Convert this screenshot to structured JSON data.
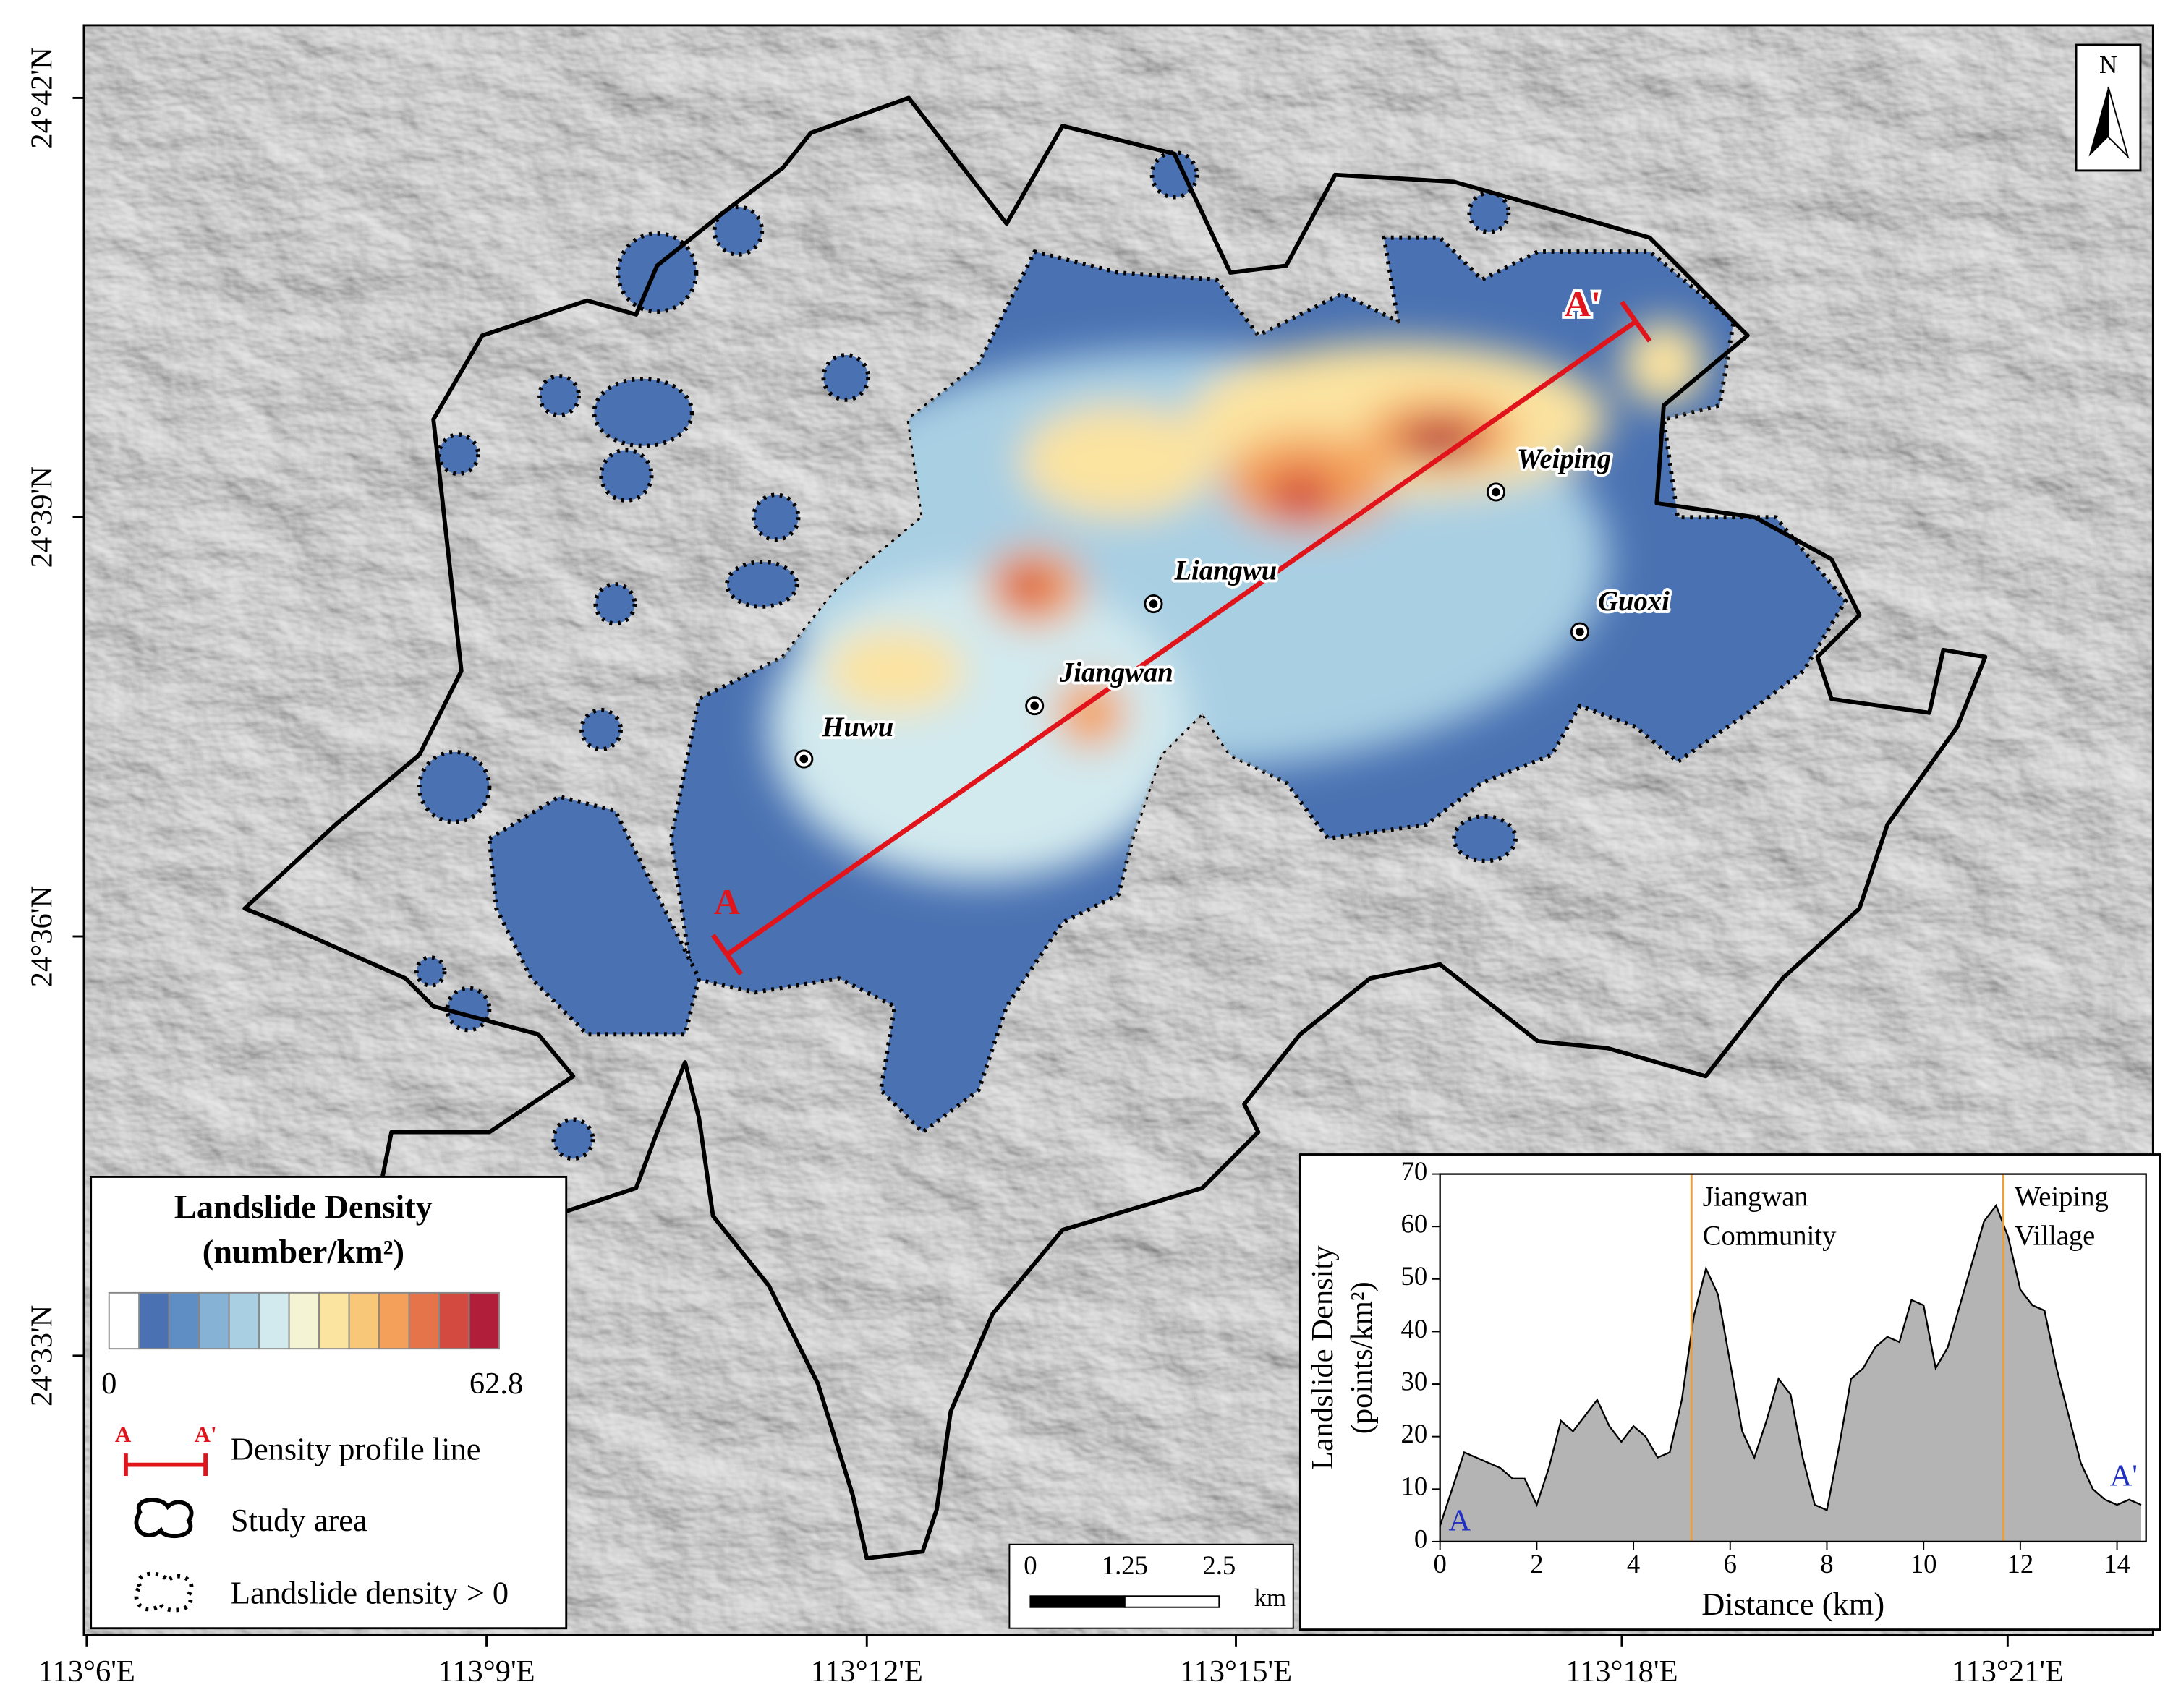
{
  "map": {
    "lat_labels": [
      "24°42'N",
      "24°39'N",
      "24°36'N",
      "24°33'N"
    ],
    "lon_labels": [
      "113°6'E",
      "113°9'E",
      "113°12'E",
      "113°15'E",
      "113°18'E",
      "113°21'E"
    ],
    "north": "N",
    "places": [
      "Huwu",
      "Jiangwan",
      "Liangwu",
      "Weiping",
      "Guoxi"
    ],
    "profile_start": "A",
    "profile_end": "A'"
  },
  "legend": {
    "title": "Landslide Density",
    "unit": "(number/km²)",
    "colors": [
      "#ffffff",
      "#4a72b2",
      "#5f8ec4",
      "#86b2d6",
      "#a9cfe3",
      "#d2e9ee",
      "#f4f4d4",
      "#fbe3a0",
      "#f8c778",
      "#f4a05a",
      "#e6744a",
      "#d24a40",
      "#b01e3a"
    ],
    "min": 0,
    "max": 62.8,
    "items": [
      "Density profile line",
      "Study area",
      "Landslide density > 0"
    ],
    "profile_symbol": [
      "A",
      "A'"
    ]
  },
  "scale_bar": {
    "ticks": [
      0,
      1.25,
      2.5
    ],
    "unit": "km"
  },
  "chart_data": {
    "type": "area",
    "xlabel": "Distance (km)",
    "ylabel": [
      "Landslide Density",
      "(points/km²)"
    ],
    "x": [
      0,
      0.25,
      0.5,
      0.75,
      1,
      1.25,
      1.5,
      1.75,
      2,
      2.25,
      2.5,
      2.75,
      3,
      3.25,
      3.5,
      3.75,
      4,
      4.25,
      4.5,
      4.75,
      5,
      5.25,
      5.5,
      5.75,
      6,
      6.25,
      6.5,
      6.75,
      7,
      7.25,
      7.5,
      7.75,
      8,
      8.25,
      8.5,
      8.75,
      9,
      9.25,
      9.5,
      9.75,
      10,
      10.25,
      10.5,
      10.75,
      11,
      11.25,
      11.5,
      11.75,
      12,
      12.25,
      12.5,
      12.75,
      13,
      13.25,
      13.5,
      13.75,
      14,
      14.25,
      14.5
    ],
    "values": [
      3,
      10,
      17,
      16,
      15,
      14,
      12,
      12,
      7,
      14,
      23,
      21,
      24,
      27,
      22,
      19,
      22,
      20,
      16,
      17,
      27,
      43,
      52,
      47,
      34,
      21,
      16,
      23,
      31,
      28,
      16,
      7,
      6,
      18,
      31,
      33,
      37,
      39,
      38,
      46,
      45,
      33,
      37,
      45,
      53,
      61,
      64,
      58,
      48,
      45,
      44,
      33,
      24,
      15,
      10,
      8,
      7,
      8,
      7
    ],
    "color": "#b4b4b4",
    "xlim": [
      0,
      14.6
    ],
    "ylim": [
      0,
      70
    ],
    "xticks": [
      0,
      2,
      4,
      6,
      8,
      10,
      12,
      14
    ],
    "yticks": [
      0,
      10,
      20,
      30,
      40,
      50,
      60,
      70
    ],
    "markers": [
      {
        "x": 5.2,
        "label": [
          "Jiangwan",
          "Community"
        ]
      },
      {
        "x": 11.65,
        "label": [
          "Weiping",
          "Village"
        ]
      }
    ],
    "marker_color": "#e8a040",
    "start_label": "A",
    "end_label": "A'",
    "end_label_color": "#2030c0"
  }
}
